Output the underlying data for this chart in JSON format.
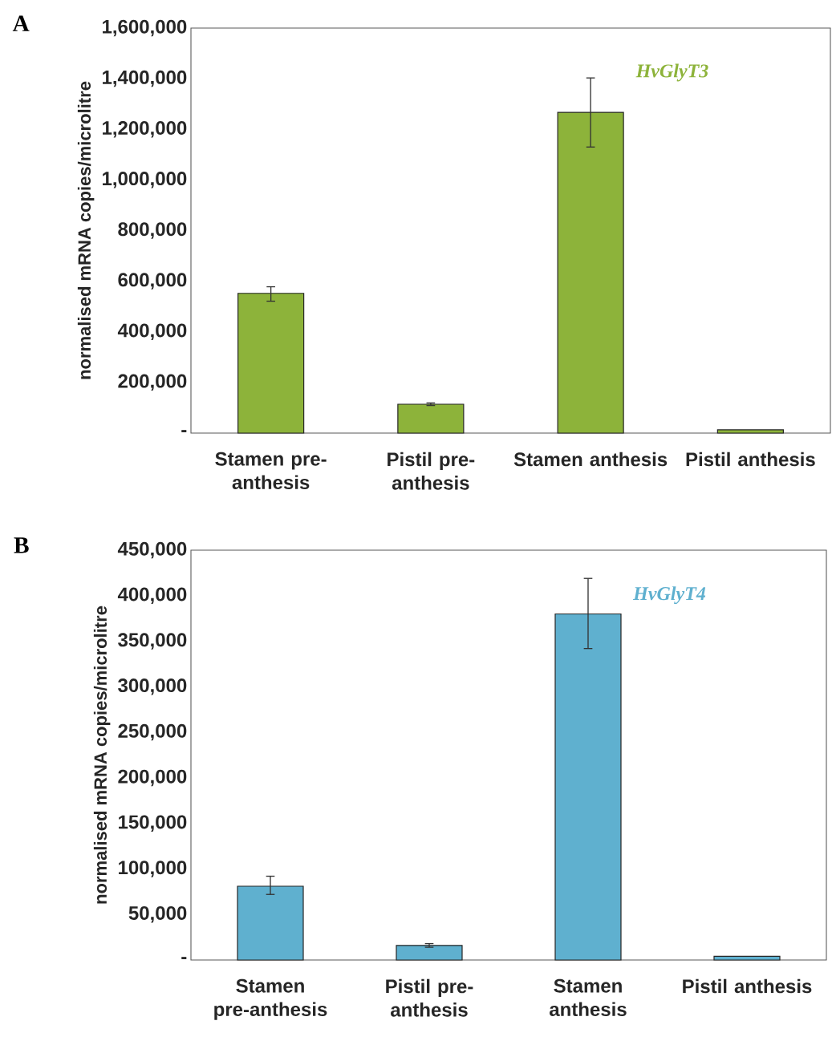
{
  "chart_data": [
    {
      "type": "bar",
      "ylabel": "normalised mRNA copies/microlitre",
      "annotations": [
        "A"
      ],
      "categories": [
        "Stamen pre-anthesis",
        "Pistil pre-anthesis",
        "Stamen anthesis",
        "Pistil anthesis"
      ],
      "series": [
        {
          "name": "HvGlyT3",
          "color": "#8db33a",
          "values": [
            552000,
            114000,
            1267000,
            13000
          ],
          "errors": [
            [
              521000,
              578000
            ],
            5000,
            [
              1130000,
              1403000
            ],
            null
          ]
        }
      ],
      "ylim": [
        0,
        1600000
      ],
      "yticks": [
        {
          "value": 0,
          "label": "-"
        },
        {
          "value": 200000,
          "label": "200,000"
        },
        {
          "value": 400000,
          "label": "400,000"
        },
        {
          "value": 600000,
          "label": "600,000"
        },
        {
          "value": 800000,
          "label": "800,000"
        },
        {
          "value": 1000000,
          "label": "1,000,000"
        },
        {
          "value": 1200000,
          "label": "1,200,000"
        },
        {
          "value": 1400000,
          "label": "1,400,000"
        },
        {
          "value": 1600000,
          "label": "1,600,000"
        }
      ]
    },
    {
      "type": "bar",
      "ylabel": "normalised mRNA copies/microlitre",
      "annotations": [
        "B"
      ],
      "categories": [
        "Stamen pre-anthesis",
        "Pistil pre-anthesis",
        "Stamen anthesis",
        "Pistil anthesis"
      ],
      "series": [
        {
          "name": "HvGlyT4",
          "color": "#5fb0cf",
          "values": [
            81000,
            16000,
            380000,
            4000
          ],
          "errors": [
            [
              72000,
              92000
            ],
            2000,
            [
              342000,
              419000
            ],
            null
          ]
        }
      ],
      "ylim": [
        0,
        450000
      ],
      "yticks": [
        {
          "value": 0,
          "label": "-"
        },
        {
          "value": 50000,
          "label": "50,000"
        },
        {
          "value": 100000,
          "label": "100,000"
        },
        {
          "value": 150000,
          "label": "150,000"
        },
        {
          "value": 200000,
          "label": "200,000"
        },
        {
          "value": 250000,
          "label": "250,000"
        },
        {
          "value": 300000,
          "label": "300,000"
        },
        {
          "value": 350000,
          "label": "350,000"
        },
        {
          "value": 400000,
          "label": "400,000"
        },
        {
          "value": 450000,
          "label": "450,000"
        }
      ]
    }
  ]
}
